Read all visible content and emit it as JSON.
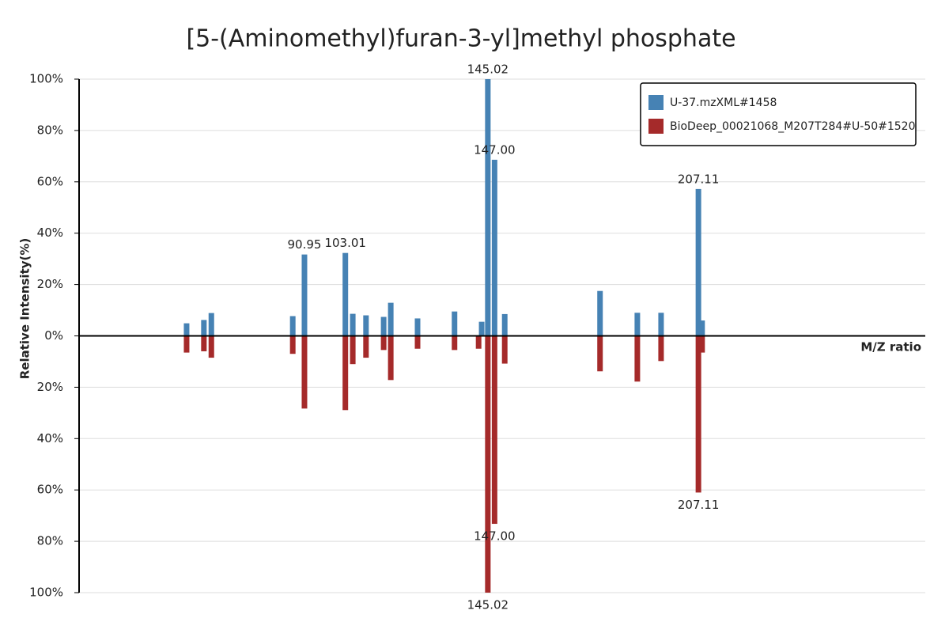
{
  "chart_data": {
    "type": "mirror_spectrum",
    "title": "[5-(Aminomethyl)furan-3-yl]methyl phosphate",
    "x_label": "M/Z ratio",
    "y_label": "Relative Intensity(%)",
    "xlim": [
      24.5,
      274
    ],
    "ylim": [
      -100,
      100
    ],
    "yticks": [
      {
        "value": -100,
        "label": "100%"
      },
      {
        "value": -80,
        "label": "80%"
      },
      {
        "value": -60,
        "label": "60%"
      },
      {
        "value": -40,
        "label": "40%"
      },
      {
        "value": -20,
        "label": "20%"
      },
      {
        "value": 0,
        "label": "0%"
      },
      {
        "value": 20,
        "label": "20%"
      },
      {
        "value": 40,
        "label": "40%"
      },
      {
        "value": 60,
        "label": "60%"
      },
      {
        "value": 80,
        "label": "80%"
      },
      {
        "value": 100,
        "label": "100%"
      }
    ],
    "grid": true,
    "legend": "top-right",
    "series": [
      {
        "name": "U-37.mzXML#1458",
        "color": "#4682b4",
        "x": [
          56.2,
          61.3,
          63.5,
          87.5,
          90.95,
          103.01,
          105.2,
          109.1,
          114.3,
          116.4,
          124.3,
          135.2,
          143.2,
          145.02,
          147.0,
          150.0,
          178.1,
          189.1,
          196.1,
          207.11,
          208.2
        ],
        "values": [
          4.9,
          6.2,
          8.9,
          7.7,
          31.7,
          32.3,
          8.6,
          8,
          7.4,
          12.9,
          6.8,
          9.5,
          5.5,
          100,
          68.6,
          8.5,
          17.5,
          9,
          9,
          57.2,
          6
        ],
        "peak_labels": [
          null,
          null,
          null,
          null,
          "90.95",
          "103.01",
          null,
          null,
          null,
          null,
          null,
          null,
          null,
          "145.02",
          "147.00",
          null,
          null,
          null,
          null,
          "207.11",
          null
        ]
      },
      {
        "name": "BioDeep_00021068_M207T284#U-50#1520",
        "color": "#a52a2a",
        "x": [
          56.2,
          61.3,
          63.5,
          87.5,
          90.95,
          103.01,
          105.2,
          109.1,
          114.3,
          116.4,
          124.3,
          135.2,
          142.3,
          145.02,
          147.0,
          150.0,
          178.1,
          189.1,
          196.1,
          207.11,
          208.2
        ],
        "values": [
          -6.5,
          -6,
          -8.5,
          -7,
          -28.3,
          -28.9,
          -11,
          -8.5,
          -5.5,
          -17.2,
          -5,
          -5.5,
          -5,
          -100,
          -73.2,
          -10.8,
          -13.8,
          -17.8,
          -9.8,
          -61,
          -6.5
        ],
        "peak_labels": [
          null,
          null,
          null,
          null,
          null,
          null,
          null,
          null,
          null,
          null,
          null,
          null,
          null,
          "145.02",
          "147.00",
          null,
          null,
          null,
          null,
          "207.11",
          null
        ]
      }
    ]
  }
}
